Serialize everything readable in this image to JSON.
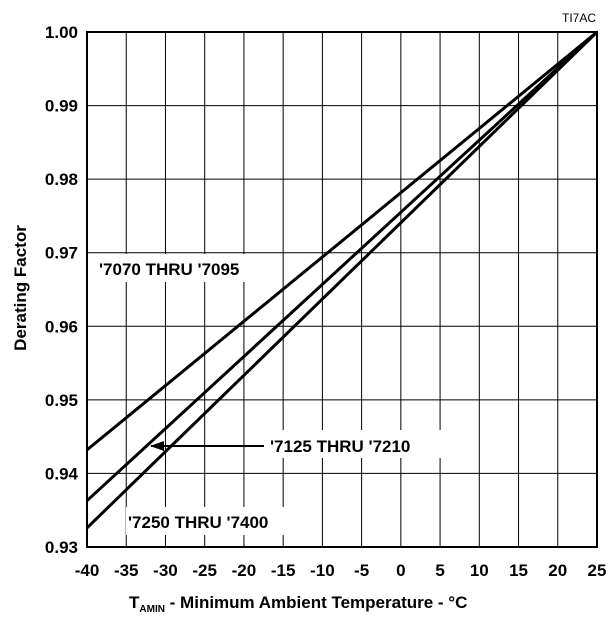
{
  "figure_id": "TI7AC",
  "chart_data": {
    "type": "line",
    "title": "",
    "xlabel_main": "T",
    "xlabel_sub": "AMIN",
    "xlabel_rest": " - Minimum Ambient Temperature - °C",
    "ylabel": "Derating Factor",
    "xlim": [
      -40,
      25
    ],
    "ylim": [
      0.93,
      1.0
    ],
    "x_ticks": [
      -40,
      -35,
      -30,
      -25,
      -20,
      -15,
      -10,
      -5,
      0,
      5,
      10,
      15,
      20,
      25
    ],
    "x_tick_labels": [
      "-40",
      "-35",
      "-30",
      "-25",
      "-20",
      "-15",
      "-10",
      "-5",
      "0",
      "5",
      "10",
      "15",
      "20",
      "25"
    ],
    "y_ticks": [
      0.93,
      0.94,
      0.95,
      0.96,
      0.97,
      0.98,
      0.99,
      1.0
    ],
    "y_tick_labels": [
      "0.93",
      "0.94",
      "0.95",
      "0.96",
      "0.97",
      "0.98",
      "0.99",
      "1.00"
    ],
    "grid": true,
    "series": [
      {
        "name": "'7070 THRU '7095",
        "x": [
          -40,
          25
        ],
        "y": [
          0.9432,
          1.0
        ]
      },
      {
        "name": "'7125 THRU '7210",
        "x": [
          -40,
          25
        ],
        "y": [
          0.9363,
          1.0
        ]
      },
      {
        "name": "'7250 THRU '7400",
        "x": [
          -40,
          25
        ],
        "y": [
          0.9326,
          1.0
        ]
      }
    ],
    "annotations": [
      {
        "text": "'7070 THRU '7095",
        "series": 0
      },
      {
        "text": "'7125 THRU '7210",
        "series": 1,
        "arrow_to_x": -32.2
      },
      {
        "text": "'7250 THRU '7400",
        "series": 2
      }
    ]
  }
}
